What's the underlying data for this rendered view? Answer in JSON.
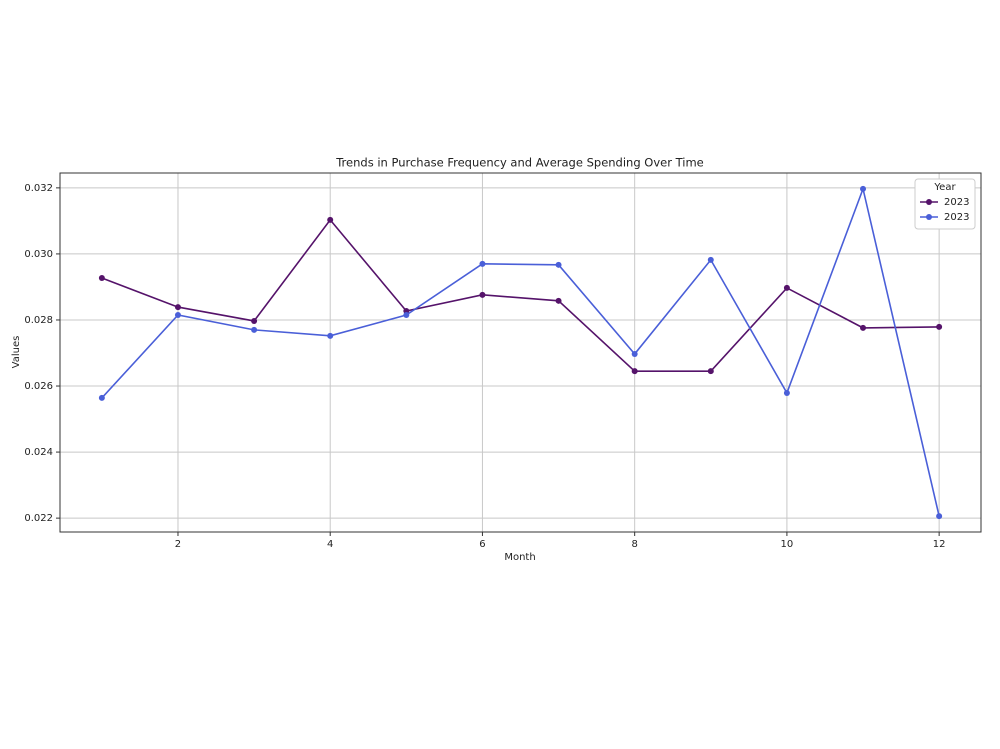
{
  "chart_data": {
    "type": "line",
    "title": "Trends in Purchase Frequency and Average Spending Over Time",
    "x_label": "Month",
    "y_label": "Values",
    "x": [
      1,
      2,
      3,
      4,
      5,
      6,
      7,
      8,
      9,
      10,
      11,
      12
    ],
    "series": [
      {
        "name": "2023",
        "color": "#55136a",
        "values": [
          0.02927,
          0.02839,
          0.02797,
          0.03103,
          0.02827,
          0.02876,
          0.02858,
          0.02645,
          0.02645,
          0.02897,
          0.02776,
          0.02779
        ]
      },
      {
        "name": "2023",
        "color": "#4a5fd8",
        "values": [
          0.02564,
          0.02815,
          0.0277,
          0.02752,
          0.02815,
          0.0297,
          0.02967,
          0.02697,
          0.02982,
          0.02579,
          0.03197,
          0.02206
        ]
      }
    ],
    "legend_title": "Year",
    "legend": "upper right",
    "xlim": [
      0.45,
      12.55
    ],
    "xticks": [
      2,
      4,
      6,
      8,
      10,
      12
    ],
    "ylim": [
      0.02158,
      0.03245
    ],
    "yticks": [
      0.022,
      0.024,
      0.026,
      0.028,
      {
        "value": 0.03,
        "label": "0.030"
      },
      0.032
    ],
    "grid": true
  }
}
